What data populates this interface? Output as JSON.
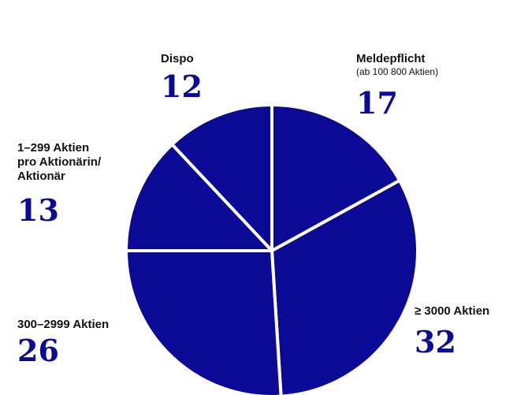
{
  "chart_data": {
    "type": "pie",
    "title": "",
    "slices": [
      {
        "label": "Meldepflicht",
        "note": "(ab 100 800 Aktien)",
        "value": 17
      },
      {
        "label": "≥ 3000 Aktien",
        "note": "",
        "value": 32
      },
      {
        "label": "300–2999 Aktien",
        "note": "",
        "value": 26
      },
      {
        "label": "1–299 Aktien\npro Aktionärin/\nAktionär",
        "note": "",
        "value": 13
      },
      {
        "label": "Dispo",
        "note": "",
        "value": 12
      }
    ],
    "colors": {
      "slice": "#0a0a96",
      "separator": "#ffffff"
    }
  }
}
